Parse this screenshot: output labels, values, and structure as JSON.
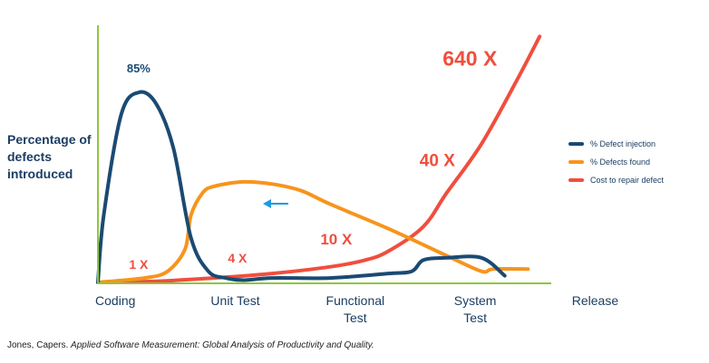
{
  "chart_data": {
    "type": "line",
    "ylabel": "Percentage of defects introduced",
    "categories": [
      "Coding",
      "Unit Test",
      "Functional Test",
      "System Test",
      "Release"
    ],
    "category_lines": {
      "Coding": [
        "Coding"
      ],
      "Unit Test": [
        "Unit Test"
      ],
      "Functional Test": [
        "Functional",
        "Test"
      ],
      "System Test": [
        "System",
        "Test"
      ],
      "Release": [
        "Release"
      ]
    },
    "series": [
      {
        "name": "% Defect injection",
        "color": "#1b4a72",
        "x": [
          0,
          0.05,
          0.2,
          0.35,
          0.5,
          0.65,
          0.8,
          0.95,
          1.1,
          1.25,
          1.5,
          2,
          2.5,
          2.7,
          2.8,
          3,
          3.3,
          3.5
        ],
        "y": [
          0,
          30,
          75,
          85,
          80,
          60,
          20,
          5,
          2,
          1,
          2,
          2,
          4,
          5,
          10,
          11,
          11,
          3
        ]
      },
      {
        "name": "% Defects found",
        "color": "#f7941d",
        "x": [
          0,
          0.4,
          0.6,
          0.75,
          0.8,
          0.9,
          1,
          1.25,
          1.5,
          1.75,
          2,
          2.5,
          3,
          3.3,
          3.4,
          3.7
        ],
        "y": [
          0,
          2,
          5,
          15,
          30,
          40,
          43,
          45,
          44,
          41,
          35,
          24,
          12,
          5,
          6,
          6
        ]
      },
      {
        "name": "Cost to repair defect",
        "color": "#f04e3e",
        "x": [
          0,
          0.5,
          1,
          1.5,
          2,
          2.3,
          2.5,
          2.8,
          3,
          3.3,
          3.6,
          3.8
        ],
        "y": [
          0,
          0.5,
          2,
          4,
          7,
          10,
          14,
          25,
          40,
          62,
          90,
          110
        ]
      }
    ],
    "annotations": [
      {
        "text": "85%",
        "x": 0.35,
        "y": 94,
        "color": "#1b4a72",
        "size": 13
      },
      {
        "text": "1 X",
        "x": 0.35,
        "y": 6,
        "color": "#f04e3e",
        "size": 14
      },
      {
        "text": "4 X",
        "x": 1.2,
        "y": 9,
        "color": "#f04e3e",
        "size": 14
      },
      {
        "text": "10 X",
        "x": 2.05,
        "y": 17,
        "color": "#f04e3e",
        "size": 17
      },
      {
        "text": "40 X",
        "x": 2.92,
        "y": 52,
        "color": "#f04e3e",
        "size": 19
      },
      {
        "text": "640 X",
        "x": 3.2,
        "y": 97,
        "color": "#f04e3e",
        "size": 23
      }
    ],
    "arrow": {
      "color": "#1b9be0",
      "direction": "left"
    },
    "axis_color": "#8dc63f",
    "xlim": [
      0,
      3.9
    ],
    "ylim": [
      0,
      115
    ],
    "grid": false
  },
  "legend": {
    "items": [
      {
        "label": "% Defect injection",
        "color": "#1b4a72"
      },
      {
        "label": "% Defects found",
        "color": "#f7941d"
      },
      {
        "label": "Cost to repair defect",
        "color": "#f04e3e"
      }
    ]
  },
  "citation": {
    "author": "Jones, Capers.",
    "title": "Applied Software Measurement: Global Analysis of Productivity and Quality."
  }
}
